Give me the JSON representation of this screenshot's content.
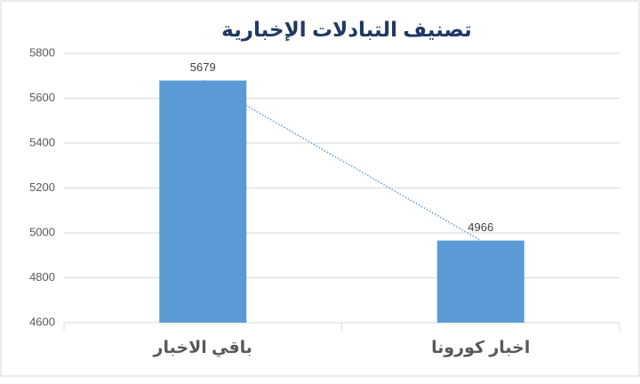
{
  "chart_data": {
    "type": "bar",
    "title": "تصنيف التبادلات الإخبارية",
    "categories": [
      "باقي الاخبار",
      "اخبار كورونا"
    ],
    "values": [
      5679,
      4966
    ],
    "color": "#5b9bd5",
    "ylim": [
      4600,
      5800
    ],
    "yticks": [
      4600,
      4800,
      5000,
      5200,
      5400,
      5600,
      5800
    ],
    "grid": true,
    "trendline": true
  }
}
